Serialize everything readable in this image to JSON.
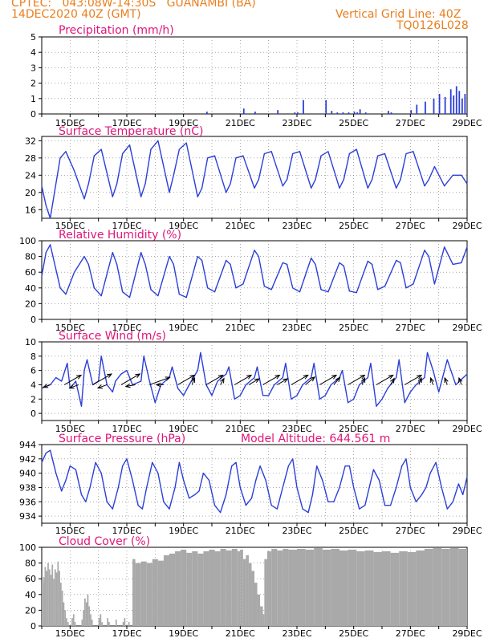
{
  "header": {
    "line1": "CPTEC:   043:08W-14:30S   GUANAMBI (BA)",
    "line2": "14DEC2020 40Z (GMT)",
    "grid_note": "Vertical Grid Line: 40Z",
    "code": "TQ0126L028",
    "model_altitude": "Model Altitude:  644.561  m"
  },
  "colors": {
    "header": "#e87f1e",
    "title": "#e0157a",
    "line": "#2b3fd8",
    "cloud": "#a9a9a9",
    "arrow": "#000000"
  },
  "x_ticks": [
    "15DEC",
    "17DEC",
    "19DEC",
    "21DEC",
    "23DEC",
    "25DEC",
    "27DEC",
    "29DEC"
  ],
  "chart_data": [
    {
      "type": "bar",
      "title": "Precipitation  (mm/h)",
      "ylim": [
        0,
        5
      ],
      "yticks": [
        0,
        1,
        2,
        3,
        4,
        5
      ],
      "x": [
        5.8,
        7.1,
        7.5,
        8.3,
        8.9,
        9.0,
        9.2,
        10.0,
        10.2,
        10.4,
        10.6,
        10.8,
        11.0,
        11.1,
        11.2,
        11.4,
        12.2,
        12.3,
        13.0,
        13.2,
        13.5,
        13.8,
        14.0,
        14.2,
        14.4,
        14.5,
        14.6,
        14.7,
        14.8,
        14.9
      ],
      "values": [
        0.15,
        0.35,
        0.15,
        0.25,
        0.1,
        0.1,
        0.9,
        0.9,
        0.2,
        0.1,
        0.1,
        0.1,
        0.15,
        0.1,
        0.3,
        0.1,
        0.2,
        0.1,
        0.25,
        0.6,
        0.8,
        1.0,
        1.3,
        1.1,
        1.6,
        1.2,
        1.8,
        1.5,
        1.0,
        1.3
      ]
    },
    {
      "type": "line",
      "title": "Surface Temperature  (nC)",
      "ylim": [
        14,
        33
      ],
      "yticks": [
        16,
        20,
        24,
        28,
        32
      ],
      "x": [
        0,
        0.15,
        0.3,
        0.65,
        0.85,
        1.15,
        1.5,
        1.65,
        1.85,
        2.1,
        2.5,
        2.65,
        2.85,
        3.1,
        3.5,
        3.65,
        3.85,
        4.1,
        4.5,
        4.65,
        4.85,
        5.1,
        5.5,
        5.65,
        5.85,
        6.1,
        6.5,
        6.65,
        6.85,
        7.1,
        7.5,
        7.65,
        7.85,
        8.1,
        8.5,
        8.65,
        8.85,
        9.1,
        9.5,
        9.65,
        9.85,
        10.1,
        10.5,
        10.65,
        10.85,
        11.1,
        11.5,
        11.65,
        11.85,
        12.1,
        12.5,
        12.65,
        12.85,
        13.1,
        13.5,
        13.65,
        13.85,
        14.2,
        14.5,
        14.8,
        15.0
      ],
      "values": [
        21.5,
        17,
        14,
        28,
        29.5,
        25,
        18.5,
        22,
        28.5,
        30,
        19,
        22,
        29,
        31,
        19,
        22,
        30,
        32,
        20,
        24,
        30,
        31.5,
        19,
        21,
        28,
        28.5,
        20,
        22,
        28,
        28.5,
        21,
        23,
        29,
        29.5,
        21.5,
        23,
        29,
        29.5,
        21,
        23,
        28.5,
        29.5,
        21,
        23,
        29,
        30,
        21,
        23,
        28.5,
        29,
        21,
        23,
        29,
        29.5,
        21.5,
        23,
        26,
        21.5,
        24,
        24,
        22
      ]
    },
    {
      "type": "line",
      "title": "Relative Humidity  (%)",
      "ylim": [
        0,
        100
      ],
      "yticks": [
        0,
        20,
        40,
        60,
        80,
        100
      ],
      "x": [
        0,
        0.15,
        0.3,
        0.65,
        0.85,
        1.15,
        1.5,
        1.65,
        1.85,
        2.1,
        2.5,
        2.65,
        2.85,
        3.1,
        3.5,
        3.65,
        3.85,
        4.1,
        4.5,
        4.65,
        4.85,
        5.1,
        5.5,
        5.65,
        5.85,
        6.1,
        6.5,
        6.65,
        6.85,
        7.1,
        7.5,
        7.65,
        7.85,
        8.1,
        8.5,
        8.65,
        8.85,
        9.1,
        9.5,
        9.65,
        9.85,
        10.1,
        10.5,
        10.65,
        10.85,
        11.1,
        11.5,
        11.65,
        11.85,
        12.1,
        12.5,
        12.65,
        12.85,
        13.1,
        13.5,
        13.65,
        13.85,
        14.2,
        14.5,
        14.8,
        15.0
      ],
      "values": [
        55,
        85,
        95,
        40,
        32,
        60,
        80,
        70,
        40,
        30,
        85,
        70,
        35,
        28,
        85,
        70,
        38,
        30,
        80,
        70,
        32,
        28,
        80,
        75,
        40,
        35,
        75,
        70,
        40,
        45,
        88,
        80,
        42,
        38,
        72,
        70,
        40,
        35,
        78,
        70,
        38,
        35,
        72,
        68,
        36,
        34,
        74,
        70,
        38,
        42,
        75,
        72,
        40,
        45,
        88,
        80,
        45,
        92,
        70,
        72,
        92
      ]
    },
    {
      "type": "line",
      "title": "Surface Wind  (m/s)",
      "ylim": [
        -1,
        10
      ],
      "yticks": [
        0,
        2,
        4,
        6,
        8,
        10
      ],
      "x": [
        0,
        0.3,
        0.5,
        0.7,
        0.9,
        1.0,
        1.2,
        1.4,
        1.5,
        1.6,
        1.8,
        2.0,
        2.1,
        2.3,
        2.5,
        2.6,
        2.8,
        3.0,
        3.2,
        3.5,
        3.6,
        3.8,
        4.0,
        4.2,
        4.5,
        4.6,
        4.8,
        5.0,
        5.2,
        5.5,
        5.6,
        5.8,
        6.0,
        6.2,
        6.5,
        6.6,
        6.8,
        7.0,
        7.2,
        7.5,
        7.6,
        7.8,
        8.0,
        8.2,
        8.5,
        8.6,
        8.8,
        9.0,
        9.2,
        9.5,
        9.6,
        9.8,
        10.0,
        10.2,
        10.5,
        10.6,
        10.8,
        11.0,
        11.2,
        11.5,
        11.6,
        11.8,
        12.0,
        12.2,
        12.5,
        12.6,
        12.8,
        13.0,
        13.2,
        13.5,
        13.6,
        13.8,
        14.0,
        14.3,
        14.6,
        15.0
      ],
      "values": [
        3.5,
        4,
        5,
        4.5,
        7,
        3.5,
        4.5,
        1,
        6,
        7.5,
        4,
        4.5,
        8,
        4,
        3,
        4.5,
        5.5,
        6,
        4,
        4.5,
        8,
        4.5,
        1.5,
        4,
        5,
        6.5,
        3.5,
        2.5,
        4,
        6,
        8.5,
        4,
        2.5,
        4.5,
        5.5,
        6.5,
        2,
        2.5,
        4,
        5,
        6.5,
        2.5,
        2.5,
        4,
        5,
        7,
        2,
        2.5,
        4,
        5,
        7,
        2,
        2.5,
        4,
        5,
        6,
        1.5,
        2,
        4,
        5,
        7,
        1,
        2,
        3.5,
        5,
        7.5,
        1.5,
        3,
        4,
        5,
        8.5,
        6,
        3,
        7.5,
        4,
        5.5
      ],
      "arrows": [
        {
          "x": 0.3,
          "dir": 250,
          "len": 0.3
        },
        {
          "x": 0.8,
          "dir": 60,
          "len": 0.8
        },
        {
          "x": 1.3,
          "dir": 250,
          "len": 0.4
        },
        {
          "x": 1.8,
          "dir": 60,
          "len": 0.9
        },
        {
          "x": 2.3,
          "dir": 250,
          "len": 0.4
        },
        {
          "x": 2.8,
          "dir": 60,
          "len": 0.9
        },
        {
          "x": 3.3,
          "dir": 260,
          "len": 0.4
        },
        {
          "x": 3.8,
          "dir": 70,
          "len": 0.9
        },
        {
          "x": 4.3,
          "dir": 270,
          "len": 0.3
        },
        {
          "x": 4.8,
          "dir": 60,
          "len": 0.8
        },
        {
          "x": 5.3,
          "dir": 20,
          "len": 0.3
        },
        {
          "x": 5.8,
          "dir": 60,
          "len": 0.8
        },
        {
          "x": 6.3,
          "dir": 30,
          "len": 0.3
        },
        {
          "x": 6.8,
          "dir": 60,
          "len": 0.8
        },
        {
          "x": 7.3,
          "dir": 60,
          "len": 0.5
        },
        {
          "x": 7.8,
          "dir": 60,
          "len": 0.8
        },
        {
          "x": 8.3,
          "dir": 60,
          "len": 0.5
        },
        {
          "x": 8.8,
          "dir": 60,
          "len": 0.8
        },
        {
          "x": 9.3,
          "dir": 50,
          "len": 0.5
        },
        {
          "x": 9.8,
          "dir": 60,
          "len": 0.8
        },
        {
          "x": 10.3,
          "dir": 40,
          "len": 0.4
        },
        {
          "x": 10.8,
          "dir": 60,
          "len": 0.8
        },
        {
          "x": 11.3,
          "dir": 20,
          "len": 0.3
        },
        {
          "x": 11.8,
          "dir": 60,
          "len": 0.8
        },
        {
          "x": 12.3,
          "dir": 30,
          "len": 0.3
        },
        {
          "x": 12.8,
          "dir": 60,
          "len": 0.8
        },
        {
          "x": 13.3,
          "dir": 20,
          "len": 0.3
        },
        {
          "x": 13.8,
          "dir": 340,
          "len": 0.3
        },
        {
          "x": 14.3,
          "dir": 340,
          "len": 0.3
        },
        {
          "x": 14.8,
          "dir": 340,
          "len": 0.3
        }
      ]
    },
    {
      "type": "line",
      "title": "Surface Pressure  (hPa)",
      "ylim": [
        933,
        944
      ],
      "yticks": [
        934,
        936,
        938,
        940,
        942,
        944
      ],
      "x": [
        0,
        0.15,
        0.3,
        0.5,
        0.7,
        0.85,
        1.0,
        1.2,
        1.4,
        1.55,
        1.7,
        1.9,
        2.1,
        2.3,
        2.5,
        2.7,
        2.85,
        3.0,
        3.2,
        3.4,
        3.55,
        3.7,
        3.9,
        4.1,
        4.3,
        4.5,
        4.7,
        4.85,
        5.0,
        5.2,
        5.4,
        5.55,
        5.7,
        5.9,
        6.1,
        6.3,
        6.5,
        6.7,
        6.85,
        7.0,
        7.2,
        7.4,
        7.55,
        7.7,
        7.9,
        8.1,
        8.3,
        8.5,
        8.7,
        8.85,
        9.0,
        9.2,
        9.4,
        9.55,
        9.7,
        9.9,
        10.1,
        10.3,
        10.5,
        10.7,
        10.85,
        11.0,
        11.2,
        11.4,
        11.55,
        11.7,
        11.9,
        12.1,
        12.3,
        12.5,
        12.7,
        12.85,
        13.0,
        13.2,
        13.4,
        13.55,
        13.7,
        13.9,
        14.1,
        14.3,
        14.5,
        14.7,
        14.85,
        15.0
      ],
      "values": [
        941.5,
        942.8,
        943.2,
        940,
        937.5,
        939,
        941,
        940.5,
        937,
        936,
        938,
        941.5,
        940,
        936,
        935,
        938,
        941,
        942,
        939,
        935.5,
        935,
        938,
        941.5,
        940,
        936,
        935,
        938,
        941.5,
        939,
        936.5,
        937,
        937.5,
        940,
        939,
        935.5,
        934.5,
        937,
        941,
        941.5,
        938,
        935.5,
        936.5,
        939,
        941,
        939,
        935.5,
        935,
        938,
        941,
        942,
        938,
        935,
        934.5,
        937,
        941,
        939,
        936,
        936,
        938,
        941,
        941,
        938,
        935,
        935.5,
        938,
        940.5,
        939,
        935.5,
        935.5,
        938,
        941,
        942,
        938,
        936,
        937,
        938,
        940,
        941.5,
        938,
        935,
        936,
        938.5,
        937,
        939.5
      ]
    },
    {
      "type": "bar",
      "title": "Cloud Cover  (%)",
      "ylim": [
        0,
        100
      ],
      "yticks": [
        0,
        20,
        40,
        60,
        80,
        100
      ],
      "segments": [
        [
          0.0,
          0.05,
          55
        ],
        [
          0.05,
          0.1,
          62
        ],
        [
          0.1,
          0.15,
          75
        ],
        [
          0.15,
          0.2,
          70
        ],
        [
          0.2,
          0.25,
          80
        ],
        [
          0.25,
          0.3,
          72
        ],
        [
          0.3,
          0.35,
          65
        ],
        [
          0.35,
          0.4,
          78
        ],
        [
          0.4,
          0.45,
          60
        ],
        [
          0.45,
          0.5,
          72
        ],
        [
          0.5,
          0.55,
          68
        ],
        [
          0.55,
          0.6,
          82
        ],
        [
          0.6,
          0.65,
          70
        ],
        [
          0.65,
          0.7,
          55
        ],
        [
          0.7,
          0.75,
          45
        ],
        [
          0.75,
          0.8,
          30
        ],
        [
          0.8,
          0.85,
          20
        ],
        [
          0.85,
          0.9,
          10
        ],
        [
          0.9,
          0.95,
          5
        ],
        [
          1.05,
          1.1,
          10
        ],
        [
          1.1,
          1.15,
          15
        ],
        [
          1.15,
          1.2,
          5
        ],
        [
          1.4,
          1.45,
          8
        ],
        [
          1.45,
          1.5,
          20
        ],
        [
          1.5,
          1.55,
          35
        ],
        [
          1.55,
          1.6,
          30
        ],
        [
          1.6,
          1.65,
          40
        ],
        [
          1.65,
          1.7,
          25
        ],
        [
          1.7,
          1.75,
          15
        ],
        [
          1.75,
          1.8,
          8
        ],
        [
          2.0,
          2.05,
          10
        ],
        [
          2.05,
          2.1,
          15
        ],
        [
          2.1,
          2.15,
          5
        ],
        [
          2.3,
          2.35,
          10
        ],
        [
          2.35,
          2.4,
          5
        ],
        [
          2.6,
          2.65,
          8
        ],
        [
          2.85,
          2.9,
          5
        ],
        [
          2.9,
          2.95,
          10
        ],
        [
          3.05,
          3.1,
          5
        ],
        [
          3.2,
          3.3,
          85
        ],
        [
          3.3,
          3.5,
          80
        ],
        [
          3.5,
          3.7,
          82
        ],
        [
          3.7,
          3.9,
          80
        ],
        [
          3.9,
          4.1,
          85
        ],
        [
          4.1,
          4.3,
          83
        ],
        [
          4.3,
          4.5,
          90
        ],
        [
          4.5,
          4.7,
          92
        ],
        [
          4.7,
          4.9,
          95
        ],
        [
          4.9,
          5.1,
          97
        ],
        [
          5.1,
          5.3,
          93
        ],
        [
          5.3,
          5.5,
          95
        ],
        [
          5.5,
          5.7,
          92
        ],
        [
          5.7,
          5.9,
          95
        ],
        [
          5.9,
          6.1,
          97
        ],
        [
          6.1,
          6.3,
          95
        ],
        [
          6.3,
          6.5,
          98
        ],
        [
          6.5,
          6.7,
          96
        ],
        [
          6.7,
          6.9,
          98
        ],
        [
          6.9,
          7.0,
          95
        ],
        [
          7.0,
          7.1,
          97
        ],
        [
          7.1,
          7.2,
          85
        ],
        [
          7.2,
          7.3,
          90
        ],
        [
          7.3,
          7.4,
          80
        ],
        [
          7.4,
          7.5,
          70
        ],
        [
          7.5,
          7.6,
          55
        ],
        [
          7.6,
          7.7,
          40
        ],
        [
          7.7,
          7.8,
          25
        ],
        [
          7.8,
          7.85,
          15
        ],
        [
          7.85,
          7.95,
          85
        ],
        [
          7.95,
          8.1,
          95
        ],
        [
          8.1,
          8.3,
          98
        ],
        [
          8.3,
          8.5,
          96
        ],
        [
          8.5,
          8.7,
          98
        ],
        [
          8.7,
          9.0,
          97
        ],
        [
          9.0,
          9.3,
          98
        ],
        [
          9.3,
          9.6,
          97
        ],
        [
          9.6,
          9.9,
          99
        ],
        [
          9.9,
          10.2,
          97
        ],
        [
          10.2,
          10.5,
          98
        ],
        [
          10.5,
          10.8,
          96
        ],
        [
          10.8,
          11.1,
          97
        ],
        [
          11.1,
          11.4,
          95
        ],
        [
          11.4,
          11.7,
          96
        ],
        [
          11.7,
          12.0,
          94
        ],
        [
          12.0,
          12.3,
          95
        ],
        [
          12.3,
          12.6,
          93
        ],
        [
          12.6,
          12.9,
          95
        ],
        [
          12.9,
          13.2,
          94
        ],
        [
          13.2,
          13.5,
          96
        ],
        [
          13.5,
          13.8,
          98
        ],
        [
          13.8,
          14.1,
          99
        ],
        [
          14.1,
          14.4,
          98
        ],
        [
          14.4,
          14.7,
          99
        ],
        [
          14.7,
          15.0,
          98
        ]
      ]
    }
  ]
}
